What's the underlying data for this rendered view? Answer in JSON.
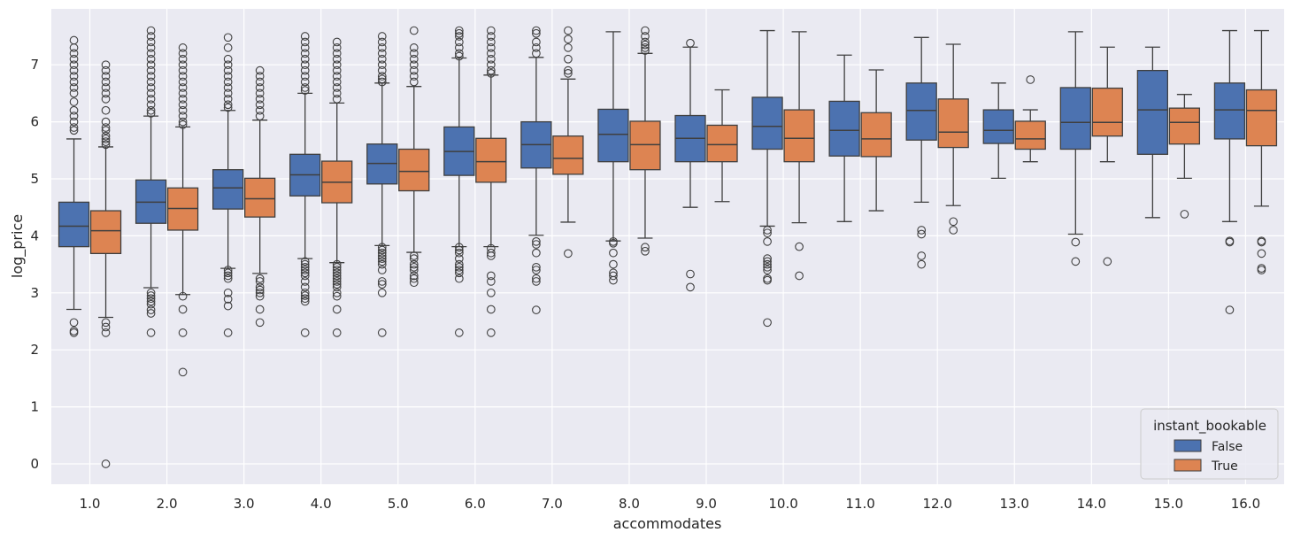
{
  "chart_data": {
    "type": "box",
    "title": "",
    "xlabel": "accommodates",
    "ylabel": "log_price",
    "ylim": [
      -0.35,
      7.95
    ],
    "yticks": [
      0,
      1,
      2,
      3,
      4,
      5,
      6,
      7
    ],
    "grid": true,
    "legend": {
      "title": "instant_bookable",
      "placement": "bottom-right"
    },
    "categories": [
      "1.0",
      "2.0",
      "3.0",
      "4.0",
      "5.0",
      "6.0",
      "7.0",
      "8.0",
      "9.0",
      "10.0",
      "11.0",
      "12.0",
      "13.0",
      "14.0",
      "15.0",
      "16.0"
    ],
    "series": [
      {
        "name": "False",
        "color": "#4C72B0",
        "boxes": [
          {
            "q1": 3.81,
            "median": 4.17,
            "q3": 4.59,
            "whislo": 2.71,
            "whishi": 5.7,
            "fliers": [
              2.48,
              2.3,
              2.33,
              5.85,
              5.9,
              6.0,
              6.1,
              6.2,
              6.35,
              6.5,
              6.6,
              6.7,
              6.8,
              6.9,
              7.0,
              7.1,
              7.2,
              7.3,
              7.43
            ]
          },
          {
            "q1": 4.22,
            "median": 4.59,
            "q3": 4.98,
            "whislo": 3.09,
            "whishi": 6.1,
            "fliers": [
              3.0,
              2.95,
              2.9,
              2.85,
              2.8,
              2.7,
              2.64,
              2.3,
              6.15,
              6.2,
              6.3,
              6.4,
              6.5,
              6.6,
              6.7,
              6.8,
              6.9,
              7.0,
              7.1,
              7.2,
              7.3,
              7.4,
              7.5,
              7.6
            ]
          },
          {
            "q1": 4.47,
            "median": 4.84,
            "q3": 5.16,
            "whislo": 3.43,
            "whishi": 6.2,
            "fliers": [
              3.4,
              3.35,
              3.3,
              3.25,
              3.0,
              2.89,
              2.77,
              2.3,
              6.25,
              6.3,
              6.4,
              6.5,
              6.6,
              6.7,
              6.8,
              6.9,
              7.0,
              7.1,
              7.3,
              7.48
            ]
          },
          {
            "q1": 4.7,
            "median": 5.07,
            "q3": 5.43,
            "whislo": 3.6,
            "whishi": 6.5,
            "fliers": [
              3.55,
              3.5,
              3.45,
              3.4,
              3.35,
              3.3,
              3.2,
              3.1,
              3.0,
              2.95,
              2.9,
              2.85,
              2.3,
              6.55,
              6.6,
              6.7,
              6.8,
              6.9,
              7.0,
              7.1,
              7.2,
              7.3,
              7.4,
              7.5
            ]
          },
          {
            "q1": 4.91,
            "median": 5.27,
            "q3": 5.61,
            "whislo": 3.83,
            "whishi": 6.68,
            "fliers": [
              3.8,
              3.75,
              3.7,
              3.65,
              3.6,
              3.55,
              3.5,
              3.4,
              3.2,
              3.15,
              3.0,
              2.3,
              6.7,
              6.75,
              6.8,
              6.9,
              7.0,
              7.1,
              7.2,
              7.3,
              7.4,
              7.5
            ]
          },
          {
            "q1": 5.06,
            "median": 5.48,
            "q3": 5.91,
            "whislo": 3.81,
            "whishi": 7.12,
            "fliers": [
              3.8,
              3.75,
              3.7,
              3.6,
              3.5,
              3.45,
              3.4,
              3.35,
              3.25,
              2.3,
              7.15,
              7.2,
              7.3,
              7.4,
              7.5,
              7.55,
              7.6
            ]
          },
          {
            "q1": 5.19,
            "median": 5.6,
            "q3": 6.0,
            "whislo": 4.01,
            "whishi": 7.13,
            "fliers": [
              3.9,
              3.85,
              3.7,
              3.45,
              3.4,
              3.25,
              3.2,
              2.7,
              7.2,
              7.3,
              7.4,
              7.55,
              7.6
            ]
          },
          {
            "q1": 5.3,
            "median": 5.78,
            "q3": 6.22,
            "whislo": 3.91,
            "whishi": 7.58,
            "fliers": [
              3.9,
              3.87,
              3.7,
              3.5,
              3.35,
              3.3,
              3.22
            ]
          },
          {
            "q1": 5.3,
            "median": 5.71,
            "q3": 6.11,
            "whislo": 4.5,
            "whishi": 7.31,
            "fliers": [
              7.38,
              3.33,
              3.1
            ]
          },
          {
            "q1": 5.52,
            "median": 5.92,
            "q3": 6.43,
            "whislo": 4.17,
            "whishi": 7.6,
            "fliers": [
              4.1,
              4.05,
              3.9,
              3.6,
              3.55,
              3.5,
              3.45,
              3.4,
              3.25,
              3.22,
              2.48
            ]
          },
          {
            "q1": 5.4,
            "median": 5.85,
            "q3": 6.36,
            "whislo": 4.25,
            "whishi": 7.17,
            "fliers": []
          },
          {
            "q1": 5.68,
            "median": 6.2,
            "q3": 6.68,
            "whislo": 4.59,
            "whishi": 7.48,
            "fliers": [
              4.1,
              4.03,
              3.65,
              3.5
            ]
          },
          {
            "q1": 5.62,
            "median": 5.85,
            "q3": 6.21,
            "whislo": 5.01,
            "whishi": 6.68,
            "fliers": []
          },
          {
            "q1": 5.52,
            "median": 5.99,
            "q3": 6.6,
            "whislo": 4.03,
            "whishi": 7.58,
            "fliers": [
              3.89,
              3.55
            ]
          },
          {
            "q1": 5.43,
            "median": 6.21,
            "q3": 6.9,
            "whislo": 4.32,
            "whishi": 7.31,
            "fliers": []
          },
          {
            "q1": 5.7,
            "median": 6.21,
            "q3": 6.68,
            "whislo": 4.25,
            "whishi": 7.6,
            "fliers": [
              3.91,
              3.89,
              2.7
            ]
          }
        ]
      },
      {
        "name": "True",
        "color": "#DD8452",
        "boxes": [
          {
            "q1": 3.69,
            "median": 4.09,
            "q3": 4.44,
            "whislo": 2.57,
            "whishi": 5.56,
            "fliers": [
              2.48,
              2.4,
              2.3,
              0.0,
              5.6,
              5.65,
              5.7,
              5.75,
              5.85,
              5.9,
              6.0,
              6.2,
              6.4,
              6.5,
              6.6,
              6.7,
              6.8,
              6.9,
              7.0
            ]
          },
          {
            "q1": 4.1,
            "median": 4.48,
            "q3": 4.84,
            "whislo": 2.97,
            "whishi": 5.91,
            "fliers": [
              2.94,
              2.71,
              2.3,
              1.61,
              5.95,
              6.0,
              6.1,
              6.2,
              6.3,
              6.4,
              6.5,
              6.6,
              6.7,
              6.8,
              6.9,
              7.0,
              7.1,
              7.2,
              7.3
            ]
          },
          {
            "q1": 4.33,
            "median": 4.65,
            "q3": 5.01,
            "whislo": 3.34,
            "whishi": 6.03,
            "fliers": [
              3.25,
              3.2,
              3.1,
              3.05,
              3.0,
              2.94,
              2.71,
              2.48,
              6.1,
              6.2,
              6.3,
              6.4,
              6.5,
              6.6,
              6.7,
              6.8,
              6.9
            ]
          },
          {
            "q1": 4.58,
            "median": 4.94,
            "q3": 5.31,
            "whislo": 3.53,
            "whishi": 6.33,
            "fliers": [
              3.5,
              3.45,
              3.4,
              3.35,
              3.3,
              3.25,
              3.2,
              3.15,
              3.1,
              3.0,
              2.94,
              2.71,
              2.3,
              6.4,
              6.5,
              6.6,
              6.7,
              6.8,
              6.9,
              7.0,
              7.1,
              7.2,
              7.3,
              7.4
            ]
          },
          {
            "q1": 4.79,
            "median": 5.13,
            "q3": 5.52,
            "whislo": 3.71,
            "whishi": 6.62,
            "fliers": [
              3.65,
              3.6,
              3.5,
              3.45,
              3.4,
              3.3,
              3.25,
              3.18,
              6.7,
              6.8,
              6.9,
              7.0,
              7.1,
              7.2,
              7.3,
              7.6
            ]
          },
          {
            "q1": 4.94,
            "median": 5.3,
            "q3": 5.71,
            "whislo": 3.81,
            "whishi": 6.82,
            "fliers": [
              3.78,
              3.7,
              3.65,
              3.3,
              3.2,
              3.0,
              2.71,
              2.3,
              6.85,
              6.9,
              7.0,
              7.1,
              7.2,
              7.3,
              7.4,
              7.5,
              7.6
            ]
          },
          {
            "q1": 5.08,
            "median": 5.36,
            "q3": 5.75,
            "whislo": 4.24,
            "whishi": 6.75,
            "fliers": [
              3.69,
              6.85,
              6.9,
              7.1,
              7.3,
              7.45,
              7.6
            ]
          },
          {
            "q1": 5.16,
            "median": 5.6,
            "q3": 6.01,
            "whislo": 3.96,
            "whishi": 7.2,
            "fliers": [
              3.8,
              3.73,
              7.25,
              7.3,
              7.35,
              7.4,
              7.5,
              7.6
            ]
          },
          {
            "q1": 5.3,
            "median": 5.6,
            "q3": 5.94,
            "whislo": 4.6,
            "whishi": 6.56,
            "fliers": []
          },
          {
            "q1": 5.3,
            "median": 5.71,
            "q3": 6.21,
            "whislo": 4.23,
            "whishi": 7.58,
            "fliers": [
              3.81,
              3.3
            ]
          },
          {
            "q1": 5.39,
            "median": 5.7,
            "q3": 6.16,
            "whislo": 4.44,
            "whishi": 6.91,
            "fliers": []
          },
          {
            "q1": 5.55,
            "median": 5.82,
            "q3": 6.4,
            "whislo": 4.53,
            "whishi": 7.36,
            "fliers": [
              4.25,
              4.1
            ]
          },
          {
            "q1": 5.52,
            "median": 5.7,
            "q3": 6.01,
            "whislo": 5.3,
            "whishi": 6.21,
            "fliers": [
              6.74
            ]
          },
          {
            "q1": 5.75,
            "median": 5.99,
            "q3": 6.59,
            "whislo": 5.3,
            "whishi": 7.31,
            "fliers": [
              3.55
            ]
          },
          {
            "q1": 5.61,
            "median": 5.99,
            "q3": 6.24,
            "whislo": 5.01,
            "whishi": 6.48,
            "fliers": [
              4.38
            ]
          },
          {
            "q1": 5.58,
            "median": 6.2,
            "q3": 6.56,
            "whislo": 4.52,
            "whishi": 7.6,
            "fliers": [
              3.91,
              3.89,
              3.69,
              3.43,
              3.4
            ]
          }
        ]
      }
    ]
  }
}
